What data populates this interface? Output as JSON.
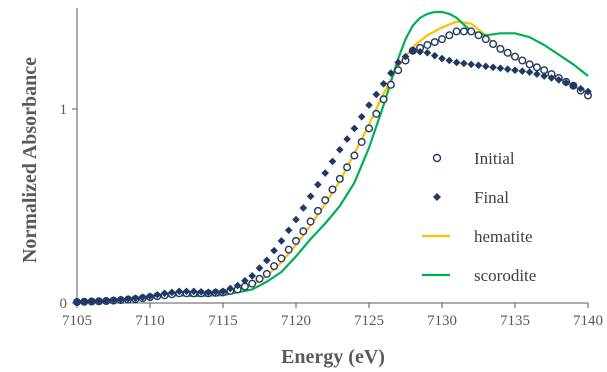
{
  "chart_data": {
    "type": "line",
    "title": "",
    "xlabel": "Energy (eV)",
    "ylabel": "Normalized Absorbance",
    "xlim": [
      7105,
      7140
    ],
    "ylim": [
      0,
      1.5
    ],
    "x_ticks": [
      7105,
      7110,
      7115,
      7120,
      7125,
      7130,
      7135,
      7140
    ],
    "y_ticks": [
      0,
      1
    ],
    "x_tick_labels": [
      "7105",
      "7110",
      "7115",
      "7120",
      "7125",
      "7130",
      "7135",
      "7140"
    ],
    "y_tick_labels": [
      "0",
      "1"
    ],
    "grid": false,
    "legend_position": "right",
    "series": [
      {
        "name": "Initial",
        "style": "open-circle",
        "color": "#1f3864",
        "x": [
          7105,
          7107,
          7109,
          7110,
          7111,
          7112,
          7113,
          7114,
          7115,
          7116,
          7117,
          7118,
          7119,
          7120,
          7121,
          7122,
          7123,
          7124,
          7125,
          7126,
          7127,
          7128,
          7129,
          7130,
          7131,
          7132,
          7133,
          7134,
          7135,
          7136,
          7137,
          7138,
          7139,
          7140
        ],
        "y": [
          0.005,
          0.01,
          0.02,
          0.03,
          0.04,
          0.05,
          0.05,
          0.05,
          0.055,
          0.07,
          0.1,
          0.15,
          0.23,
          0.32,
          0.42,
          0.53,
          0.64,
          0.76,
          0.9,
          1.05,
          1.2,
          1.3,
          1.33,
          1.36,
          1.4,
          1.4,
          1.36,
          1.31,
          1.27,
          1.23,
          1.2,
          1.16,
          1.12,
          1.07
        ]
      },
      {
        "name": "Final",
        "style": "filled-diamond",
        "color": "#1f3864",
        "x": [
          7105,
          7107,
          7109,
          7110,
          7111,
          7112,
          7113,
          7114,
          7115,
          7116,
          7117,
          7118,
          7119,
          7120,
          7121,
          7122,
          7123,
          7124,
          7125,
          7126,
          7127,
          7128,
          7129,
          7130,
          7131,
          7132,
          7133,
          7134,
          7135,
          7136,
          7137,
          7138,
          7139,
          7140
        ],
        "y": [
          0.005,
          0.012,
          0.025,
          0.035,
          0.05,
          0.06,
          0.06,
          0.055,
          0.06,
          0.09,
          0.14,
          0.22,
          0.32,
          0.43,
          0.55,
          0.67,
          0.79,
          0.9,
          1.02,
          1.13,
          1.24,
          1.3,
          1.29,
          1.26,
          1.24,
          1.23,
          1.22,
          1.21,
          1.2,
          1.19,
          1.17,
          1.15,
          1.12,
          1.09
        ]
      },
      {
        "name": "hematite",
        "style": "line",
        "color": "#ffc000",
        "x": [
          7105,
          7108,
          7110,
          7112,
          7113,
          7115,
          7117,
          7118,
          7119,
          7120,
          7121,
          7122,
          7123,
          7124,
          7125,
          7126,
          7127,
          7128,
          7129,
          7130,
          7131,
          7132,
          7133,
          7134,
          7135,
          7136,
          7137,
          7138,
          7139,
          7140
        ],
        "y": [
          0.005,
          0.02,
          0.035,
          0.05,
          0.05,
          0.055,
          0.09,
          0.14,
          0.21,
          0.3,
          0.4,
          0.51,
          0.63,
          0.77,
          0.92,
          1.08,
          1.22,
          1.32,
          1.38,
          1.42,
          1.45,
          1.44,
          1.38,
          1.3,
          1.26,
          1.23,
          1.2,
          1.16,
          1.12,
          1.08
        ]
      },
      {
        "name": "scorodite",
        "style": "line",
        "color": "#00b050",
        "x": [
          7105,
          7108,
          7110,
          7112,
          7113,
          7115,
          7117,
          7118,
          7119,
          7120,
          7121,
          7122,
          7123,
          7124,
          7125,
          7126,
          7127,
          7127.5,
          7128,
          7128.5,
          7129,
          7129.5,
          7130,
          7130.5,
          7131,
          7132,
          7133,
          7134,
          7135,
          7136,
          7137,
          7138,
          7139,
          7140
        ],
        "y": [
          0.005,
          0.015,
          0.03,
          0.04,
          0.035,
          0.04,
          0.07,
          0.11,
          0.16,
          0.24,
          0.33,
          0.41,
          0.5,
          0.62,
          0.8,
          1.02,
          1.26,
          1.36,
          1.43,
          1.47,
          1.49,
          1.5,
          1.5,
          1.49,
          1.47,
          1.4,
          1.38,
          1.39,
          1.39,
          1.37,
          1.33,
          1.28,
          1.23,
          1.17
        ]
      }
    ]
  }
}
